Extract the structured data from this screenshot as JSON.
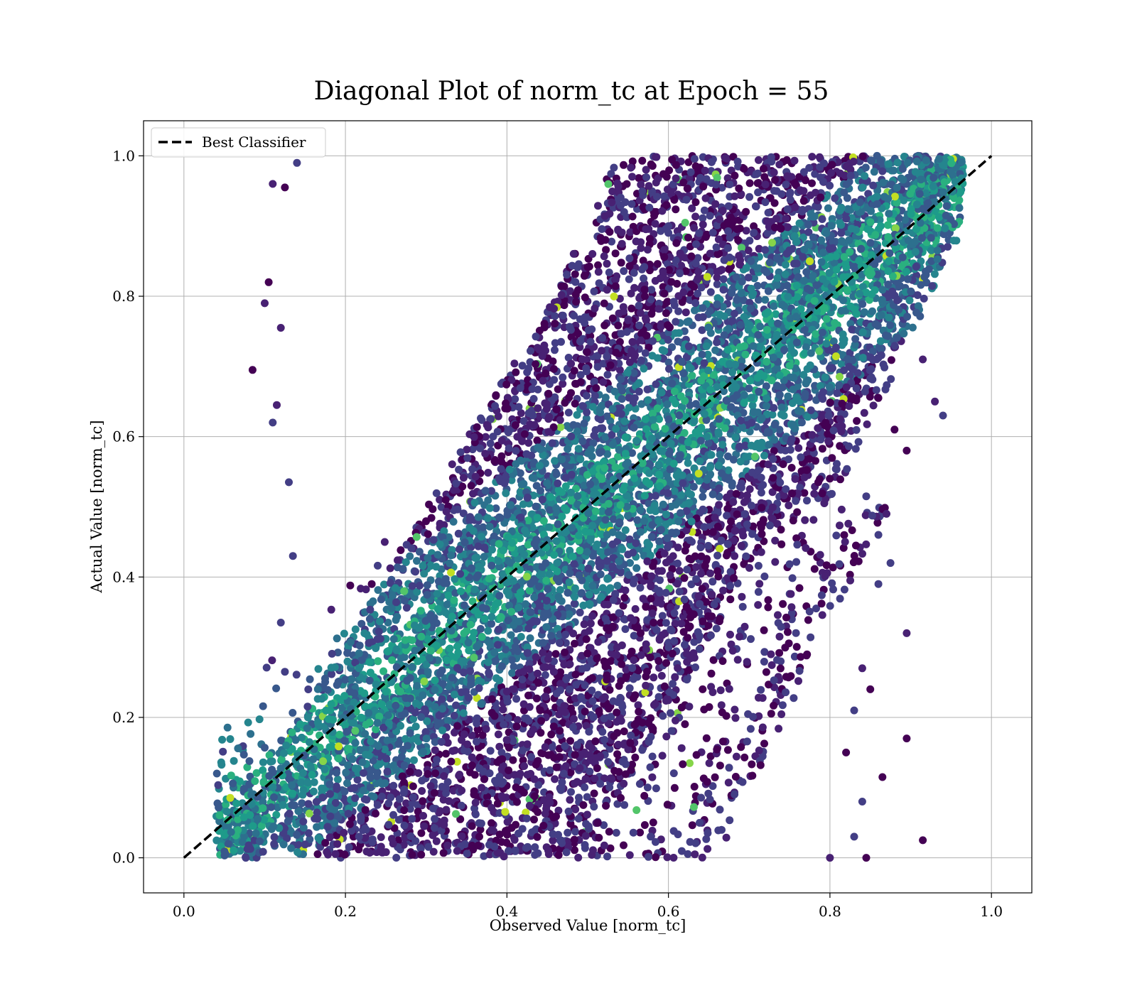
{
  "chart_data": {
    "type": "scatter",
    "title": "Diagonal Plot of norm_tc at Epoch = 55",
    "xlabel": "Observed Value [norm_tc]",
    "ylabel": "Actual Value [norm_tc]",
    "xlim": [
      -0.05,
      1.05
    ],
    "ylim": [
      -0.05,
      1.05
    ],
    "xticks": [
      "0.0",
      "0.2",
      "0.4",
      "0.6",
      "0.8",
      "1.0"
    ],
    "yticks": [
      "0.0",
      "0.2",
      "0.4",
      "0.6",
      "0.8",
      "1.0"
    ],
    "grid": true,
    "legend_position": "top-left",
    "reference_line": {
      "name": "Best Classifier",
      "x": [
        0.0,
        1.0
      ],
      "y": [
        0.0,
        1.0
      ],
      "style": "dashed",
      "color": "#000000"
    },
    "scatter": {
      "colormap": "viridis",
      "colors": [
        "#440154",
        "#482173",
        "#433e85",
        "#38588c",
        "#2d708e",
        "#25858e",
        "#1e9b8a",
        "#2ab07f",
        "#52c569",
        "#86d549",
        "#c2df23"
      ],
      "x_range_observed": [
        0.04,
        0.965
      ],
      "y_range_actual": [
        0.0,
        1.0
      ],
      "outliers": [
        {
          "x": 0.11,
          "y": 0.96
        },
        {
          "x": 0.085,
          "y": 0.695
        },
        {
          "x": 0.105,
          "y": 0.82
        },
        {
          "x": 0.115,
          "y": 0.645
        },
        {
          "x": 0.12,
          "y": 0.335
        },
        {
          "x": 0.13,
          "y": 0.535
        },
        {
          "x": 0.135,
          "y": 0.43
        },
        {
          "x": 0.1,
          "y": 0.79
        },
        {
          "x": 0.94,
          "y": 0.63
        },
        {
          "x": 0.93,
          "y": 0.65
        },
        {
          "x": 0.915,
          "y": 0.71
        },
        {
          "x": 0.895,
          "y": 0.58
        },
        {
          "x": 0.895,
          "y": 0.32
        },
        {
          "x": 0.895,
          "y": 0.17
        },
        {
          "x": 0.915,
          "y": 0.025
        },
        {
          "x": 0.875,
          "y": 0.42
        },
        {
          "x": 0.87,
          "y": 0.49
        },
        {
          "x": 0.86,
          "y": 0.46
        },
        {
          "x": 0.865,
          "y": 0.115
        },
        {
          "x": 0.845,
          "y": 0.515
        },
        {
          "x": 0.845,
          "y": 0.0
        },
        {
          "x": 0.84,
          "y": 0.08
        },
        {
          "x": 0.8,
          "y": 0.0
        },
        {
          "x": 0.83,
          "y": 0.03
        },
        {
          "x": 0.83,
          "y": 0.21
        },
        {
          "x": 0.85,
          "y": 0.24
        },
        {
          "x": 0.86,
          "y": 0.39
        },
        {
          "x": 0.84,
          "y": 0.27
        },
        {
          "x": 0.88,
          "y": 0.61
        },
        {
          "x": 0.86,
          "y": 0.655
        },
        {
          "x": 0.125,
          "y": 0.955
        },
        {
          "x": 0.14,
          "y": 0.99
        },
        {
          "x": 0.12,
          "y": 0.755
        },
        {
          "x": 0.11,
          "y": 0.62
        },
        {
          "x": 0.125,
          "y": 0.265
        },
        {
          "x": 0.82,
          "y": 0.15
        }
      ]
    }
  }
}
